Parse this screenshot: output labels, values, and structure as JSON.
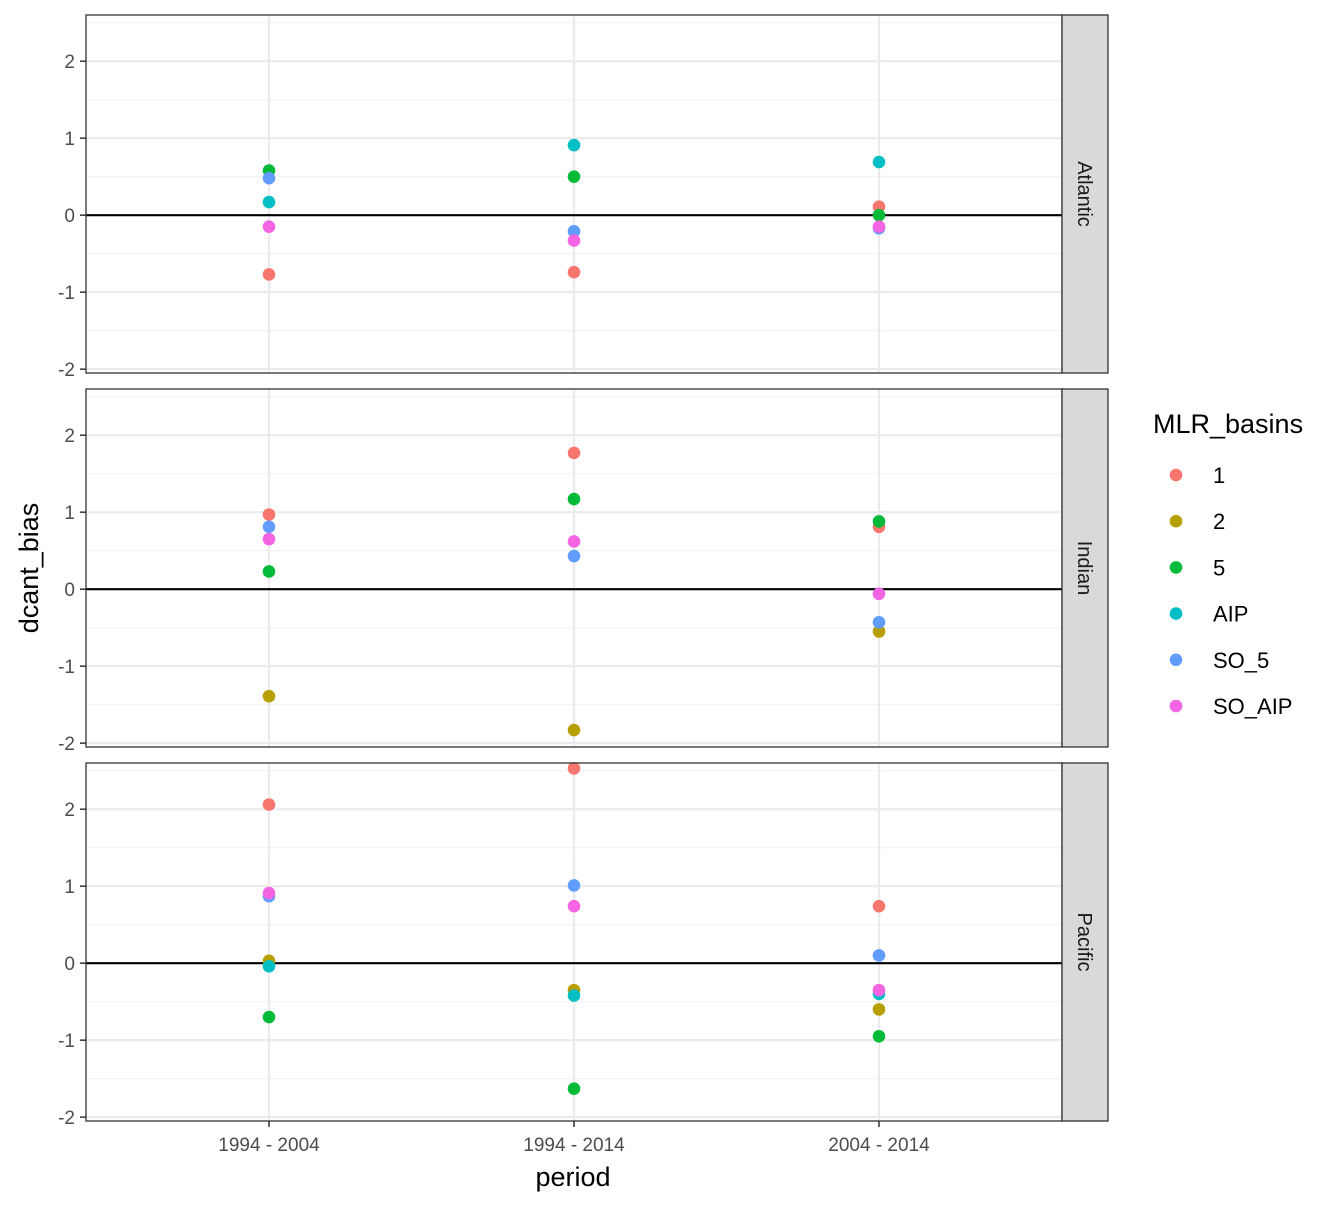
{
  "chart_data": {
    "type": "scatter",
    "xlabel": "period",
    "ylabel": "dcant_bias",
    "categories": [
      "1994 - 2004",
      "1994 - 2014",
      "2004 - 2014"
    ],
    "ylim": [
      -2.05,
      2.6
    ],
    "yticks": [
      -2,
      -1,
      0,
      1,
      2
    ],
    "grid": true,
    "reference_line_y": 0,
    "legend": {
      "title": "MLR_basins",
      "placement": "right",
      "entries": [
        {
          "name": "1",
          "color": "#F8766D"
        },
        {
          "name": "2",
          "color": "#B79F00"
        },
        {
          "name": "5",
          "color": "#00BA38"
        },
        {
          "name": "AIP",
          "color": "#00BFC4"
        },
        {
          "name": "SO_5",
          "color": "#619CFF"
        },
        {
          "name": "SO_AIP",
          "color": "#F564E3"
        }
      ]
    },
    "panels": [
      {
        "label": "Atlantic",
        "series": [
          {
            "name": "1",
            "values": [
              -0.77,
              -0.74,
              0.11
            ]
          },
          {
            "name": "5",
            "values": [
              0.58,
              0.5,
              0.0
            ]
          },
          {
            "name": "AIP",
            "values": [
              0.17,
              0.91,
              0.69
            ]
          },
          {
            "name": "SO_5",
            "values": [
              0.48,
              -0.21,
              -0.17
            ]
          },
          {
            "name": "SO_AIP",
            "values": [
              -0.15,
              -0.33,
              -0.15
            ]
          }
        ]
      },
      {
        "label": "Indian",
        "series": [
          {
            "name": "1",
            "values": [
              0.97,
              1.77,
              0.81
            ]
          },
          {
            "name": "2",
            "values": [
              -1.39,
              -1.83,
              -0.55
            ]
          },
          {
            "name": "5",
            "values": [
              0.23,
              1.17,
              0.88
            ]
          },
          {
            "name": "SO_5",
            "values": [
              0.81,
              0.43,
              -0.43
            ]
          },
          {
            "name": "SO_AIP",
            "values": [
              0.65,
              0.62,
              -0.06
            ]
          }
        ]
      },
      {
        "label": "Pacific",
        "series": [
          {
            "name": "1",
            "values": [
              2.06,
              2.53,
              0.74
            ]
          },
          {
            "name": "2",
            "values": [
              0.03,
              -0.35,
              -0.6
            ]
          },
          {
            "name": "5",
            "values": [
              -0.7,
              -1.63,
              -0.95
            ]
          },
          {
            "name": "AIP",
            "values": [
              -0.04,
              -0.42,
              -0.4
            ]
          },
          {
            "name": "SO_5",
            "values": [
              0.87,
              1.01,
              0.1
            ]
          },
          {
            "name": "SO_AIP",
            "values": [
              0.91,
              0.74,
              -0.35
            ]
          }
        ]
      }
    ]
  }
}
